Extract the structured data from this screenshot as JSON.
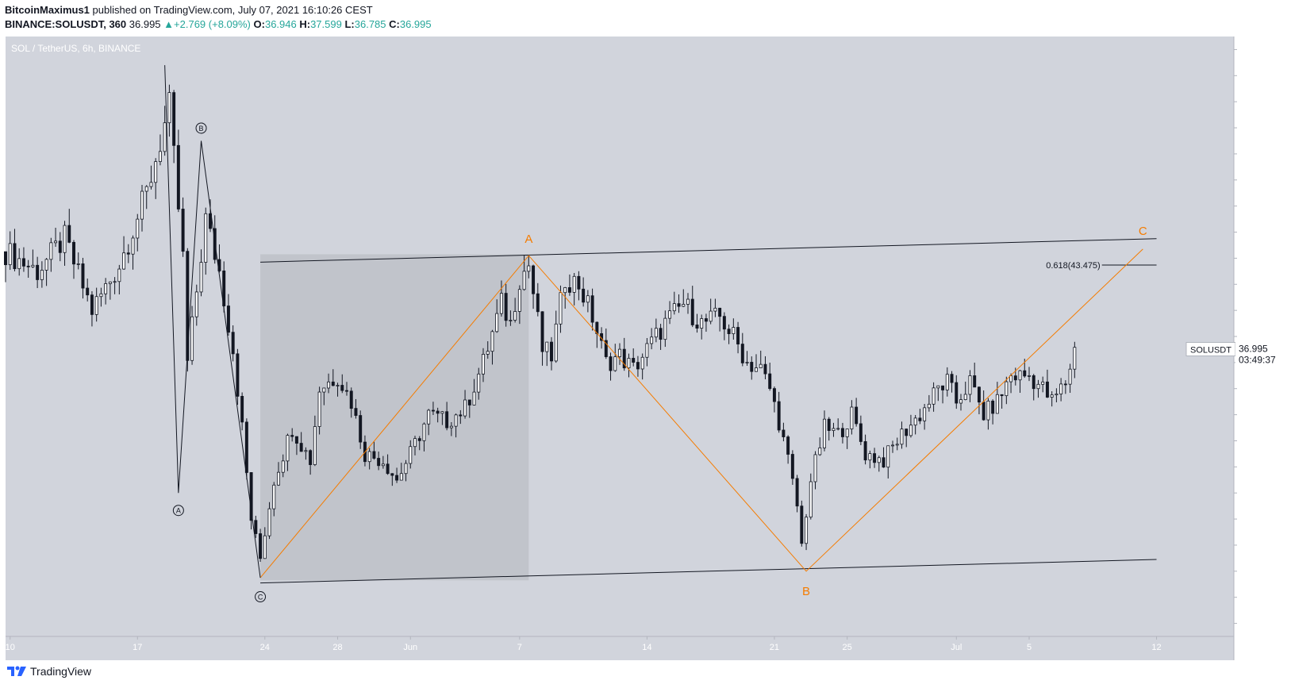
{
  "header": {
    "author": "BitcoinMaximus1",
    "published_text": "published on TradingView.com, July 07, 2021 16:10:26 CEST",
    "symbol": "BINANCE:SOLUSDT, 360",
    "last": "36.995",
    "arrow": "▲",
    "change": "+2.769 (+8.09%)",
    "o_label": "O:",
    "o_val": "36.946",
    "h_label": "H:",
    "h_val": "37.599",
    "l_label": "L:",
    "l_val": "36.785",
    "c_label": "C:",
    "c_val": "36.995"
  },
  "chart_title": "SOL / TetherUS, 6h, BINANCE",
  "axis_unit": "USDT",
  "price_tag": {
    "symbol": "SOLUSDT",
    "value": "36.995",
    "countdown": "03:49:37"
  },
  "fib_label": "0.618(43.475)",
  "wave_labels": {
    "circled": [
      "A",
      "B",
      "C"
    ],
    "orange": [
      "A",
      "B",
      "C"
    ]
  },
  "footer": {
    "brand": "TradingView",
    "logo_icon": "tradingview-logo-icon"
  },
  "colors": {
    "background": "#d1d4dc",
    "zone": "#c1c4cb",
    "orange": "#f57c00",
    "up": "#ffffff",
    "down": "#131722"
  },
  "chart_data": {
    "type": "candlestick",
    "title": "SOL / TetherUS, 6h, BINANCE",
    "y_axis_label": "USDT",
    "ylim": [
      15,
      61
    ],
    "y_ticks": [
      16,
      18,
      20,
      22,
      24,
      26,
      28,
      30,
      32,
      34,
      36,
      38,
      40,
      42,
      44,
      46,
      48,
      50,
      52,
      54,
      56,
      58,
      60
    ],
    "x_ticks": [
      {
        "label": "10",
        "date": "2021-05-10"
      },
      {
        "label": "17",
        "date": "2021-05-17"
      },
      {
        "label": "24",
        "date": "2021-05-24"
      },
      {
        "label": "28",
        "date": "2021-05-28"
      },
      {
        "label": "Jun",
        "date": "2021-06-01"
      },
      {
        "label": "7",
        "date": "2021-06-07"
      },
      {
        "label": "14",
        "date": "2021-06-14"
      },
      {
        "label": "21",
        "date": "2021-06-21"
      },
      {
        "label": "25",
        "date": "2021-06-25"
      },
      {
        "label": "Jul",
        "date": "2021-07-01"
      },
      {
        "label": "5",
        "date": "2021-07-05"
      },
      {
        "label": "12",
        "date": "2021-07-12"
      }
    ],
    "x_range": [
      "2021-05-09T18:00",
      "2021-07-16T06:00"
    ],
    "anchors": [
      {
        "t": "2021-05-09T18:00",
        "p": 44.5
      },
      {
        "t": "2021-05-11T12:00",
        "p": 43.0
      },
      {
        "t": "2021-05-13T00:00",
        "p": 45.5
      },
      {
        "t": "2021-05-14T12:00",
        "p": 40.0
      },
      {
        "t": "2021-05-16T00:00",
        "p": 43.5
      },
      {
        "t": "2021-05-17T12:00",
        "p": 49.0
      },
      {
        "t": "2021-05-18T18:00",
        "p": 55.5
      },
      {
        "t": "2021-05-19T12:00",
        "p": 44.0
      },
      {
        "t": "2021-05-19T18:00",
        "p": 36.0
      },
      {
        "t": "2021-05-20T18:00",
        "p": 47.0
      },
      {
        "t": "2021-05-21T12:00",
        "p": 43.0
      },
      {
        "t": "2021-05-22T06:00",
        "p": 37.0
      },
      {
        "t": "2021-05-22T18:00",
        "p": 31.0
      },
      {
        "t": "2021-05-23T06:00",
        "p": 24.0
      },
      {
        "t": "2021-05-23T18:00",
        "p": 21.0
      },
      {
        "t": "2021-05-24T12:00",
        "p": 27.0
      },
      {
        "t": "2021-05-25T12:00",
        "p": 31.0
      },
      {
        "t": "2021-05-26T12:00",
        "p": 28.5
      },
      {
        "t": "2021-05-27T00:00",
        "p": 34.0
      },
      {
        "t": "2021-05-28T00:00",
        "p": 35.0
      },
      {
        "t": "2021-05-28T18:00",
        "p": 33.0
      },
      {
        "t": "2021-05-29T12:00",
        "p": 29.0
      },
      {
        "t": "2021-05-30T12:00",
        "p": 28.5
      },
      {
        "t": "2021-05-31T06:00",
        "p": 27.0
      },
      {
        "t": "2021-06-01T00:00",
        "p": 29.0
      },
      {
        "t": "2021-06-02T00:00",
        "p": 32.0
      },
      {
        "t": "2021-06-03T00:00",
        "p": 31.5
      },
      {
        "t": "2021-06-04T00:00",
        "p": 32.5
      },
      {
        "t": "2021-06-05T00:00",
        "p": 36.0
      },
      {
        "t": "2021-06-06T00:00",
        "p": 40.5
      },
      {
        "t": "2021-06-06T12:00",
        "p": 39.0
      },
      {
        "t": "2021-06-07T00:00",
        "p": 42.5
      },
      {
        "t": "2021-06-07T12:00",
        "p": 43.5
      },
      {
        "t": "2021-06-08T06:00",
        "p": 37.0
      },
      {
        "t": "2021-06-08T18:00",
        "p": 36.5
      },
      {
        "t": "2021-06-09T12:00",
        "p": 42.5
      },
      {
        "t": "2021-06-10T06:00",
        "p": 42.0
      },
      {
        "t": "2021-06-11T00:00",
        "p": 39.5
      },
      {
        "t": "2021-06-11T18:00",
        "p": 36.0
      },
      {
        "t": "2021-06-12T12:00",
        "p": 36.5
      },
      {
        "t": "2021-06-13T06:00",
        "p": 35.5
      },
      {
        "t": "2021-06-14T06:00",
        "p": 37.5
      },
      {
        "t": "2021-06-15T00:00",
        "p": 39.0
      },
      {
        "t": "2021-06-16T00:00",
        "p": 40.5
      },
      {
        "t": "2021-06-17T00:00",
        "p": 39.0
      },
      {
        "t": "2021-06-18T00:00",
        "p": 39.5
      },
      {
        "t": "2021-06-18T18:00",
        "p": 38.0
      },
      {
        "t": "2021-06-19T12:00",
        "p": 36.0
      },
      {
        "t": "2021-06-20T06:00",
        "p": 35.5
      },
      {
        "t": "2021-06-20T18:00",
        "p": 34.0
      },
      {
        "t": "2021-06-21T06:00",
        "p": 31.5
      },
      {
        "t": "2021-06-21T18:00",
        "p": 28.5
      },
      {
        "t": "2021-06-22T06:00",
        "p": 25.0
      },
      {
        "t": "2021-06-22T12:00",
        "p": 22.0
      },
      {
        "t": "2021-06-23T00:00",
        "p": 27.0
      },
      {
        "t": "2021-06-23T18:00",
        "p": 31.0
      },
      {
        "t": "2021-06-24T12:00",
        "p": 30.5
      },
      {
        "t": "2021-06-25T06:00",
        "p": 32.0
      },
      {
        "t": "2021-06-26T00:00",
        "p": 29.0
      },
      {
        "t": "2021-06-27T00:00",
        "p": 28.5
      },
      {
        "t": "2021-06-28T00:00",
        "p": 30.5
      },
      {
        "t": "2021-06-29T00:00",
        "p": 32.0
      },
      {
        "t": "2021-06-30T00:00",
        "p": 34.0
      },
      {
        "t": "2021-06-30T12:00",
        "p": 34.5
      },
      {
        "t": "2021-07-01T00:00",
        "p": 33.0
      },
      {
        "t": "2021-07-01T18:00",
        "p": 34.5
      },
      {
        "t": "2021-07-02T12:00",
        "p": 32.0
      },
      {
        "t": "2021-07-03T06:00",
        "p": 33.0
      },
      {
        "t": "2021-07-04T00:00",
        "p": 35.0
      },
      {
        "t": "2021-07-05T00:00",
        "p": 35.0
      },
      {
        "t": "2021-07-05T18:00",
        "p": 34.0
      },
      {
        "t": "2021-07-06T06:00",
        "p": 33.0
      },
      {
        "t": "2021-07-06T18:00",
        "p": 34.0
      },
      {
        "t": "2021-07-07T00:00",
        "p": 34.5
      },
      {
        "t": "2021-07-07T12:00",
        "p": 36.995
      }
    ],
    "last_price": 36.995,
    "channel": {
      "upper": [
        {
          "t": "2021-05-23T18:00",
          "p": 43.7
        },
        {
          "t": "2021-07-12T00:00",
          "p": 45.5
        }
      ],
      "lower": [
        {
          "t": "2021-05-23T18:00",
          "p": 19.1
        },
        {
          "t": "2021-07-12T00:00",
          "p": 20.9
        }
      ]
    },
    "zone": {
      "x": [
        "2021-05-23T18:00",
        "2021-06-07T12:00"
      ],
      "y": [
        19.3,
        44.3
      ]
    },
    "fib_level": {
      "label": "0.618(43.475)",
      "price": 43.475,
      "x": [
        "2021-07-09T00:00",
        "2021-07-12T00:00"
      ]
    },
    "wave_abc_orange": [
      {
        "label": "",
        "t": "2021-05-23T18:00",
        "p": 19.5
      },
      {
        "label": "A",
        "t": "2021-06-07T12:00",
        "p": 44.2
      },
      {
        "label": "B",
        "t": "2021-06-22T18:00",
        "p": 20.0
      },
      {
        "label": "C",
        "t": "2021-07-11T06:00",
        "p": 44.7
      }
    ],
    "wave_abc_black": [
      {
        "label": "",
        "t": "2021-05-18T12:00",
        "p": 58.8
      },
      {
        "label": "A",
        "t": "2021-05-19T06:00",
        "p": 26.0
      },
      {
        "label": "B",
        "t": "2021-05-20T12:00",
        "p": 53.0
      },
      {
        "label": "C",
        "t": "2021-05-23T18:00",
        "p": 19.5
      }
    ]
  }
}
